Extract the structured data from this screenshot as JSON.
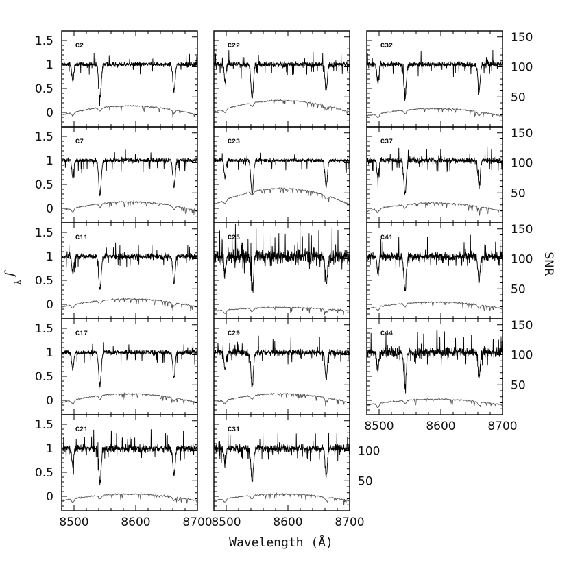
{
  "figure": {
    "xlabel": "Wavelength (Å)",
    "ylabel_left": "f",
    "ylabel_left_sub": "λ",
    "ylabel_right": "SNR"
  },
  "chart_data": {
    "type": "line",
    "description_free": true,
    "xlim": [
      8480,
      8700
    ],
    "flux_ylim": [
      -0.3,
      1.7
    ],
    "snr_ylim": [
      0,
      160
    ],
    "x_ticks": [
      8500,
      8600,
      8700
    ],
    "x_tick_labels": [
      "8500",
      "8600",
      "8700"
    ],
    "y_ticks": [
      0,
      0.5,
      1,
      1.5
    ],
    "y_tick_labels": [
      "0",
      "0.5",
      "1",
      "1.5"
    ],
    "snr_ticks": [
      50,
      100,
      150
    ],
    "snr_tick_labels": [
      "50",
      "100",
      "150"
    ],
    "absorption_lines": [
      8498,
      8542,
      8662
    ],
    "panels": [
      {
        "label": "C2",
        "column": 0,
        "row": 0,
        "noise": 0.05,
        "snr_peak": 30
      },
      {
        "label": "C7",
        "column": 0,
        "row": 1,
        "noise": 0.05,
        "snr_peak": 30
      },
      {
        "label": "C11",
        "column": 0,
        "row": 2,
        "noise": 0.06,
        "snr_peak": 28
      },
      {
        "label": "C17",
        "column": 0,
        "row": 3,
        "noise": 0.05,
        "snr_peak": 30
      },
      {
        "label": "C21",
        "column": 0,
        "row": 4,
        "noise": 0.08,
        "snr_peak": 22
      },
      {
        "label": "C22",
        "column": 1,
        "row": 0,
        "noise": 0.06,
        "snr_peak": 40
      },
      {
        "label": "C23",
        "column": 1,
        "row": 1,
        "noise": 0.04,
        "snr_peak": 55
      },
      {
        "label": "C25",
        "column": 1,
        "row": 2,
        "noise": 0.14,
        "snr_peak": 12
      },
      {
        "label": "C29",
        "column": 1,
        "row": 3,
        "noise": 0.07,
        "snr_peak": 30
      },
      {
        "label": "C31",
        "column": 1,
        "row": 4,
        "noise": 0.08,
        "snr_peak": 22
      },
      {
        "label": "C32",
        "column": 2,
        "row": 0,
        "noise": 0.06,
        "snr_peak": 25
      },
      {
        "label": "C37",
        "column": 2,
        "row": 1,
        "noise": 0.06,
        "snr_peak": 28
      },
      {
        "label": "C41",
        "column": 2,
        "row": 2,
        "noise": 0.09,
        "snr_peak": 22
      },
      {
        "label": "C44",
        "column": 2,
        "row": 3,
        "noise": 0.1,
        "snr_peak": 20
      }
    ]
  }
}
